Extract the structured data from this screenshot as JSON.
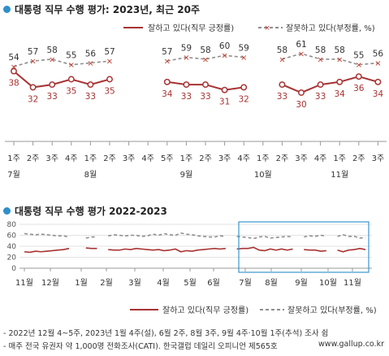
{
  "title1": "대통령 직무 수행 평가: 2023년, 최근 20주",
  "title2": "대통령 직무 수행 평가 2022-2023",
  "notes": {
    "line1": "- 2022년 12월 4~5주, 2023년 1월 4주(설), 6월 2주, 8월 3주, 9월 4주·10월 1주(추석) 조사 쉼",
    "line2": "- 매주 전국 유권자 약 1,000명 전화조사(CATI). 한국갤럽 데일리 오피니언 제565호",
    "source": "www.gallup.co.kr"
  },
  "colors": {
    "approve": "#a83232",
    "disapprove": "#8e8e8e",
    "accent": "#2e8fc9",
    "highlight": "#3b95cf"
  },
  "chart_data": [
    {
      "type": "line",
      "title": "대통령 직무 수행 평가: 2023년, 최근 20주",
      "x": [
        "1주",
        "2주",
        "3주",
        "4주",
        "1주",
        "2주",
        "3주",
        "4주",
        "5주",
        "1주",
        "2주",
        "3주",
        "4주",
        "1주",
        "2주",
        "3주",
        "4주",
        "1주",
        "2주",
        "3주"
      ],
      "month_labels": [
        {
          "index": 0,
          "label": "7월"
        },
        {
          "index": 4,
          "label": "8월"
        },
        {
          "index": 9,
          "label": "9월"
        },
        {
          "index": 13,
          "label": "10월"
        },
        {
          "index": 17,
          "label": "11월"
        }
      ],
      "series": [
        {
          "name": "잘하고 있다(직무 긍정률)",
          "values": [
            38,
            32,
            33,
            35,
            33,
            35,
            null,
            null,
            34,
            33,
            33,
            31,
            32,
            null,
            33,
            30,
            33,
            34,
            36,
            34
          ]
        },
        {
          "name": "잘못하고 있다(부정률, %)",
          "values": [
            54,
            57,
            58,
            55,
            56,
            57,
            null,
            null,
            57,
            59,
            58,
            60,
            59,
            null,
            58,
            61,
            58,
            58,
            55,
            56
          ]
        }
      ],
      "gaps": [
        6,
        7,
        13
      ],
      "ylim": [
        0,
        70
      ]
    },
    {
      "type": "line",
      "title": "대통령 직무 수행 평가 2022-2023",
      "month_ticks": [
        "11월",
        "12월",
        "1월",
        "2월",
        "3월",
        "4월",
        "5월",
        "6월",
        "7월",
        "8월",
        "9월",
        "10월",
        "11월"
      ],
      "yticks": [
        0,
        20,
        40,
        60,
        80
      ],
      "ylim": [
        0,
        80
      ],
      "series": [
        {
          "name": "잘하고 있다(직무 긍정률)",
          "values": [
            30,
            29,
            31,
            30,
            31,
            32,
            33,
            34,
            36,
            null,
            null,
            37,
            36,
            36,
            null,
            34,
            33,
            33,
            35,
            34,
            36,
            35,
            34,
            33,
            34,
            32,
            33,
            35,
            30,
            32,
            31,
            33,
            34,
            35,
            36,
            35,
            36,
            null,
            35,
            36,
            36,
            38,
            33,
            32,
            35,
            33,
            35,
            33,
            35,
            null,
            34,
            33,
            33,
            31,
            32,
            null,
            33,
            30,
            33,
            34,
            36,
            34
          ]
        },
        {
          "name": "잘못하고 있다(부정률, %)",
          "values": [
            63,
            62,
            61,
            62,
            61,
            60,
            59,
            59,
            57,
            null,
            null,
            55,
            57,
            57,
            null,
            59,
            61,
            60,
            59,
            60,
            60,
            58,
            59,
            62,
            60,
            63,
            61,
            60,
            64,
            62,
            61,
            59,
            58,
            57,
            57,
            59,
            58,
            null,
            58,
            57,
            56,
            54,
            57,
            58,
            55,
            56,
            57,
            58,
            57,
            null,
            57,
            59,
            58,
            60,
            59,
            null,
            58,
            61,
            58,
            58,
            55,
            56
          ]
        }
      ],
      "highlight": {
        "from": "7월",
        "to": "11월"
      }
    }
  ],
  "legend": {
    "approve_label": "잘하고 있다(직무 긍정률)",
    "disapprove_label": "잘못하고 있다(부정률, %)"
  }
}
